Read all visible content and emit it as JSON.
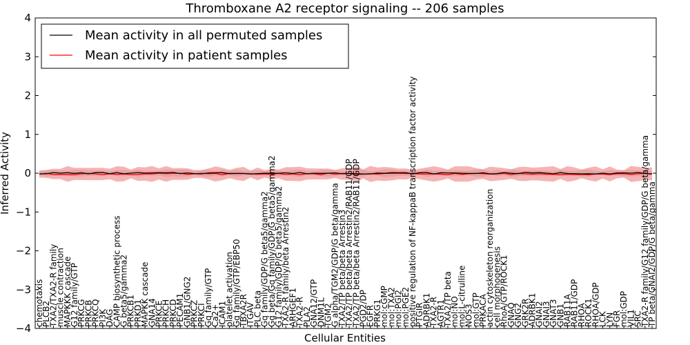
{
  "chart_data": {
    "type": "line",
    "title": "Thromboxane A2 receptor signaling -- 206 samples",
    "xlabel": "Cellular Entities",
    "ylabel": "Inferred Activity",
    "ylim": [
      -4,
      4
    ],
    "yticks": [
      "4",
      "3",
      "2",
      "1",
      "0",
      "−1",
      "−2",
      "−3",
      "−4"
    ],
    "ytick_values": [
      4,
      3,
      2,
      1,
      0,
      -1,
      -2,
      -3,
      -4
    ],
    "grid": false,
    "legend_position": "upper-left",
    "series": [
      {
        "name": "Mean activity in all permuted samples",
        "color": "#000000",
        "band_color": "#c8c8c8",
        "mean": 0.0,
        "band": 0.07
      },
      {
        "name": "Mean activity in patient samples",
        "color": "#ff0000",
        "band_color": "#f08080",
        "mean": -0.02,
        "band": 0.15
      }
    ],
    "entities": [
      "chemotaxis",
      "PLCB2",
      "TXA2/TXA2-R family",
      "muscle contraction",
      "MAPKKK cascade",
      "G12 family/GTP",
      "PRKCG",
      "PRKCB",
      "PRKCQ",
      "PI3K",
      "DAG",
      "CAMP biosynthetic process",
      "G beta5/gamma2",
      "PRKCB1",
      "PRKD1",
      "MAPKK cascade",
      "GNA14",
      "PRKCE",
      "PRKCH",
      "PRKCD",
      "PECAM1",
      "GNB1/GNG2",
      "PRKCZ",
      "PRKCI",
      "Gq family/GTP",
      "Ca2+",
      "ICAM1",
      "platelet activation",
      "Gq family/GTP/EBP50",
      "TBXA2R",
      "ITGAV",
      "PLC beta",
      "Gq family/GDP/G beta5/gamma2",
      "Gq beta/Gq family/GDP/G beta5/gamma2",
      "G12 family/GDP/G beta5/gamma2",
      "TXA2-R family/beta Arrestin2",
      "ARHGEF1",
      "TXA2-R",
      "PLA2",
      "GNA12/GTP",
      "DNM1L",
      "TGM2",
      "G alpha/TGM2/GDP/G beta/gamma",
      "TXA2/TP beta/beta Arrestin3",
      "TXA2/TP beta/beta Arrestin2/RAB11/GDP",
      "TXA2/TP beta/beta Arrestin2/RAB11/GDP",
      "PGD2/DP",
      "EGFR",
      "PRKG1",
      "mol:cGMP",
      "mol:TXA2",
      "mol:PGI2",
      "mol:PGE2",
      "positive regulation of NF-kappaB transcription factor activity",
      "PTGIR",
      "ADRBK1",
      "TXA2-R",
      "AGTR1",
      "TXA2/TP beta",
      "mol:NO",
      "mol:L-citrulline",
      "NOS3",
      "mol:GTP",
      "PRKACA",
      "actin cytoskeleton reorganization",
      "cell morphogenesis",
      "RhoA/GTP/ROCK1",
      "GNAQ",
      "GNG2",
      "GRK2R",
      "ADRBK1",
      "GNAI2",
      "GNAI3",
      "GNAT3",
      "GNB1",
      "RAB11A",
      "RAB11/GDP",
      "RHOA",
      "ROCK1",
      "RHOA/GDP",
      "LCK",
      "LYN",
      "FGR",
      "mol:GDP",
      "VIL1",
      "SRC",
      "TXA2-R family/G12 family/GDP/G beta/gamma",
      "TP beta/GNAI2/GDP/G beta/gamma"
    ]
  }
}
